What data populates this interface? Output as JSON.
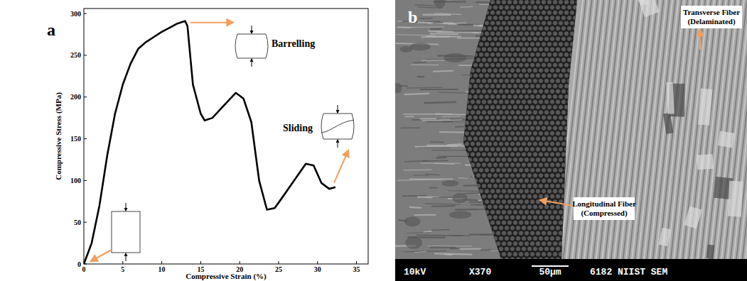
{
  "chart_data": {
    "type": "line",
    "x_label": "Compressive Strain (%)",
    "y_label": "Compressive Stress (MPa)",
    "x": [
      0,
      1,
      2,
      3,
      4,
      5,
      6,
      7,
      8,
      9,
      10,
      11,
      12,
      13,
      13.3,
      14,
      15,
      15.5,
      16.5,
      18,
      19.5,
      20.5,
      21.5,
      22.5,
      23.5,
      24.5,
      25.5,
      27,
      28.5,
      29.5,
      30.5,
      31.5,
      32.3
    ],
    "values": [
      0,
      25,
      70,
      130,
      180,
      215,
      240,
      258,
      266,
      272,
      278,
      283,
      288,
      291,
      285,
      215,
      180,
      172,
      175,
      190,
      205,
      198,
      170,
      100,
      65,
      67,
      80,
      100,
      120,
      118,
      97,
      90,
      92
    ],
    "color": "#000000",
    "xlim": [
      0,
      36.5
    ],
    "xticks": [
      0,
      5,
      10,
      15,
      20,
      25,
      30,
      35
    ],
    "ylim": [
      0,
      306
    ],
    "yticks": [
      0,
      50,
      100,
      150,
      200,
      250,
      300
    ],
    "grid": false,
    "annotations": [
      "Barrelling",
      "Sliding"
    ]
  },
  "panel_labels": [
    "a",
    "b"
  ],
  "sem_image": {
    "annotations": [
      {
        "lines": [
          "Transverse Fiber",
          "(Delaminated)"
        ]
      },
      {
        "lines": [
          "Longitudinal Fiber",
          "(Compressed)"
        ]
      }
    ],
    "info_bar": {
      "voltage": "10kV",
      "magnification": "X370",
      "scale": "50µm",
      "id": "6182 NIIST SEM"
    }
  }
}
